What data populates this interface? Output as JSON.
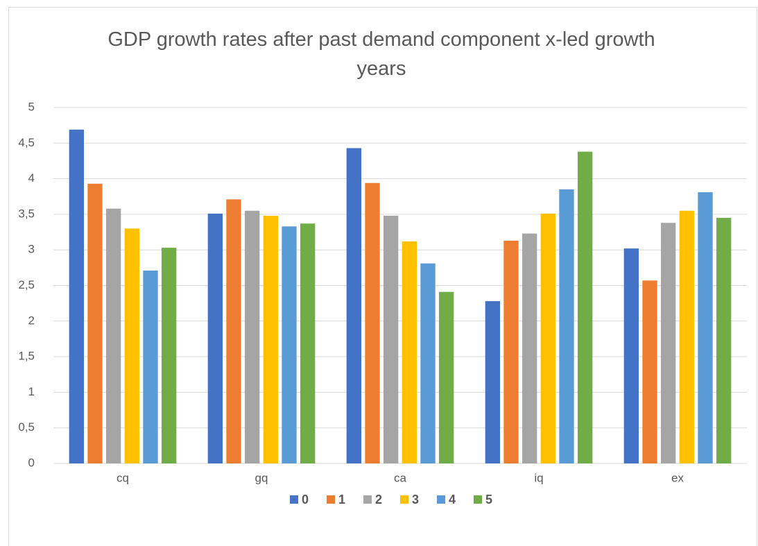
{
  "chart_data": {
    "type": "bar",
    "title": "GDP growth rates after past demand component x-led growth years",
    "categories": [
      "cq",
      "gq",
      "ca",
      "iq",
      "ex"
    ],
    "series": [
      {
        "name": "0",
        "color": "#4472c4",
        "values": [
          4.69,
          3.51,
          4.43,
          2.28,
          3.02
        ]
      },
      {
        "name": "1",
        "color": "#ed7d31",
        "values": [
          3.93,
          3.71,
          3.94,
          3.13,
          2.57
        ]
      },
      {
        "name": "2",
        "color": "#a5a5a5",
        "values": [
          3.58,
          3.55,
          3.48,
          3.23,
          3.38
        ]
      },
      {
        "name": "3",
        "color": "#ffc000",
        "values": [
          3.3,
          3.48,
          3.12,
          3.51,
          3.55
        ]
      },
      {
        "name": "4",
        "color": "#5b9bd5",
        "values": [
          2.71,
          3.33,
          2.81,
          3.85,
          3.81
        ]
      },
      {
        "name": "5",
        "color": "#70ad47",
        "values": [
          3.03,
          3.37,
          2.41,
          4.38,
          3.45
        ]
      }
    ],
    "ylim": [
      0,
      5
    ],
    "yticks": [
      0,
      {
        "value": 0.5,
        "label": "0,5"
      },
      1,
      {
        "value": 1.5,
        "label": "1,5"
      },
      2,
      {
        "value": 2.5,
        "label": "2,5"
      },
      3,
      {
        "value": 3.5,
        "label": "3,5"
      },
      4,
      {
        "value": 4.5,
        "label": "4,5"
      },
      5
    ],
    "grid": true,
    "legend": "bottom"
  }
}
